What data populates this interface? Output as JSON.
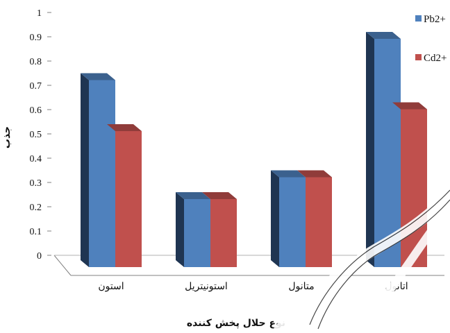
{
  "chart_data": {
    "type": "bar",
    "categories": [
      "استون",
      "استونیتریل",
      "متانول",
      "اتانول"
    ],
    "series": [
      {
        "name": "Pb2+",
        "values": [
          0.77,
          0.28,
          0.37,
          0.94
        ],
        "color": "#4f81bd"
      },
      {
        "name": "Cd2+",
        "values": [
          0.56,
          0.28,
          0.37,
          0.65
        ],
        "color": "#c0504d"
      }
    ],
    "ylim": [
      0,
      1
    ],
    "yticks": [
      0,
      0.1,
      0.2,
      0.3,
      0.4,
      0.5,
      0.6,
      0.7,
      0.8,
      0.9,
      1
    ],
    "ytick_labels": [
      "0",
      "0.1",
      "0.2",
      "0.3",
      "0.4",
      "0.5",
      "0.6",
      "0.7",
      "0.8",
      "0.9",
      "1"
    ],
    "xlabel": "نوع حلال پخش کننده",
    "ylabel": "جذب",
    "grid": false,
    "legend_position": "right",
    "style": "3d-clustered-bar"
  }
}
